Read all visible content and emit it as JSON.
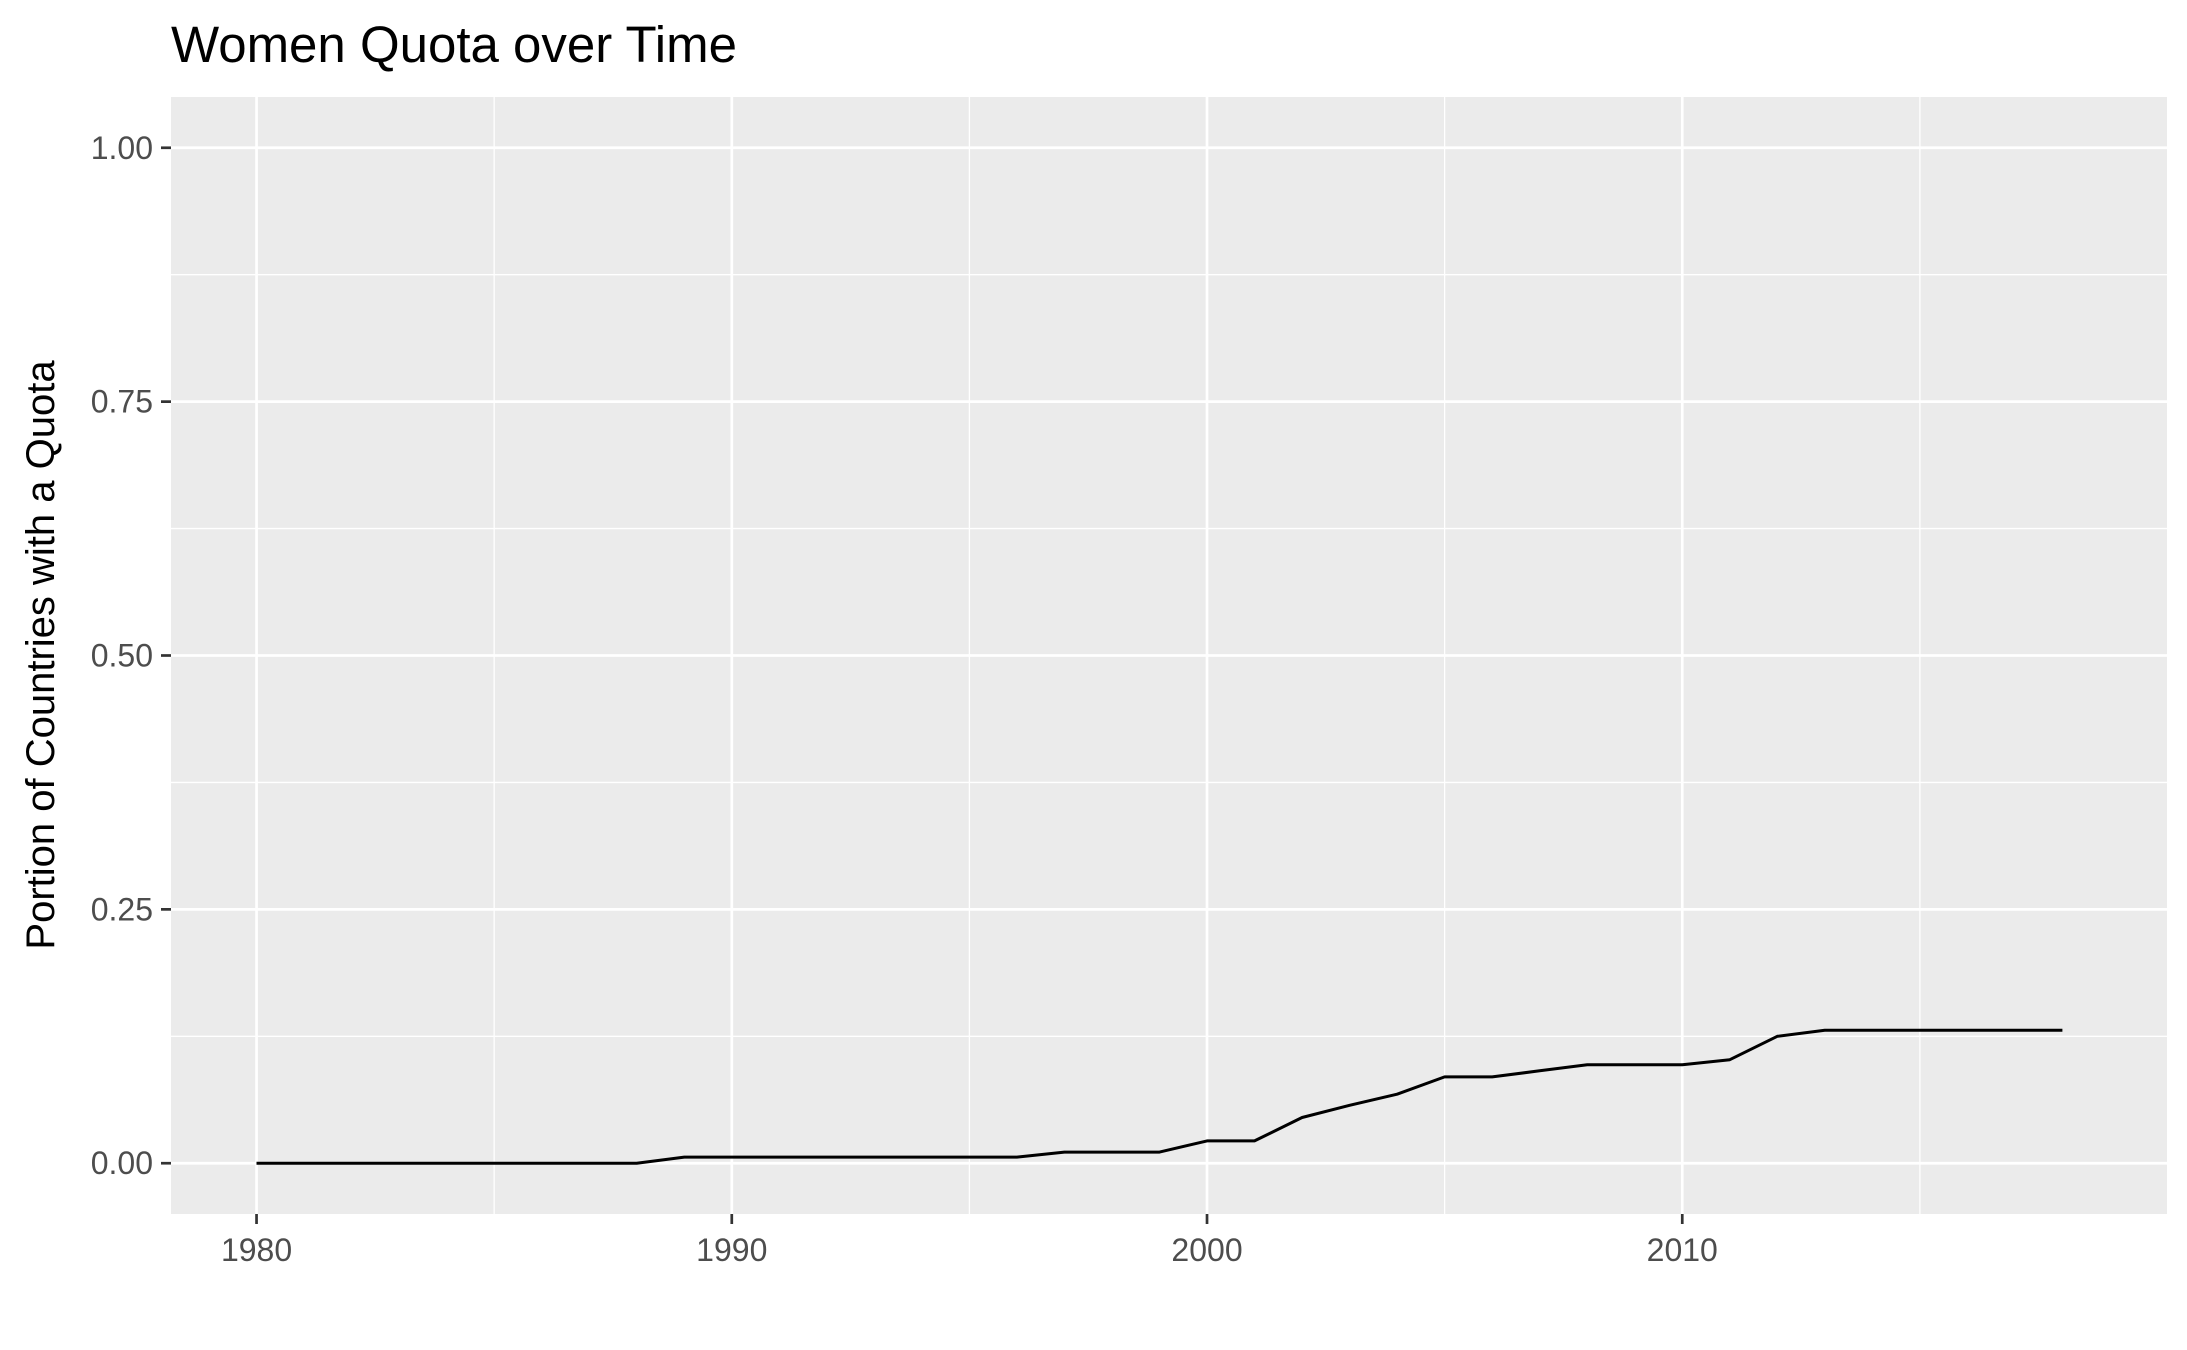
{
  "chart_data": {
    "type": "line",
    "title": "Women Quota over Time",
    "xlabel": "",
    "ylabel": "Portion of Countries with a Quota",
    "xlim": [
      1978.2,
      2020.2
    ],
    "ylim": [
      -0.05,
      1.05
    ],
    "x_ticks": [
      1980,
      1990,
      2000,
      2010
    ],
    "x_tick_labels": [
      "1980",
      "1990",
      "2000",
      "2010"
    ],
    "x_minor_ticks": [
      1985,
      1995,
      2005,
      2015
    ],
    "y_ticks": [
      0,
      0.25,
      0.5,
      0.75,
      1
    ],
    "y_tick_labels": [
      "0.00",
      "0.25",
      "0.50",
      "0.75",
      "1.00"
    ],
    "y_minor_ticks": [
      0.125,
      0.375,
      0.625,
      0.875
    ],
    "grid": true,
    "series": [
      {
        "color": "#000000",
        "x": [
          1980,
          1981,
          1982,
          1983,
          1984,
          1985,
          1986,
          1987,
          1988,
          1989,
          1990,
          1991,
          1992,
          1993,
          1994,
          1995,
          1996,
          1997,
          1998,
          1999,
          2000,
          2001,
          2002,
          2003,
          2004,
          2005,
          2006,
          2007,
          2008,
          2009,
          2010,
          2011,
          2012,
          2013,
          2014,
          2015,
          2016,
          2017,
          2018
        ],
        "y": [
          0,
          0,
          0,
          0,
          0,
          0,
          0,
          0,
          0,
          0.006,
          0.006,
          0.006,
          0.006,
          0.006,
          0.006,
          0.006,
          0.006,
          0.011,
          0.011,
          0.011,
          0.022,
          0.022,
          0.045,
          0.057,
          0.068,
          0.085,
          0.085,
          0.091,
          0.097,
          0.097,
          0.097,
          0.102,
          0.125,
          0.131,
          0.131,
          0.131,
          0.131,
          0.131,
          0.131
        ]
      }
    ]
  }
}
